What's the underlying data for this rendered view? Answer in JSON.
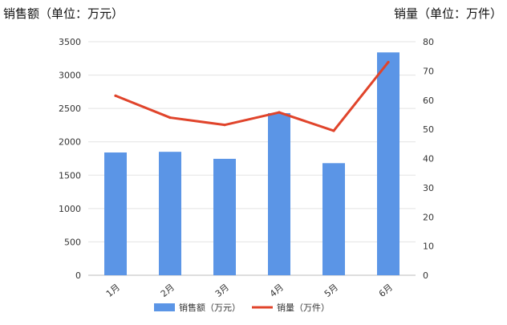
{
  "chart_data": {
    "type": "bar+line",
    "categories": [
      "1月",
      "2月",
      "3月",
      "4月",
      "5月",
      "6月"
    ],
    "left_axis": {
      "label": "销售额（单位：万元）",
      "ylim": [
        0,
        3500
      ],
      "ticks": [
        0,
        500,
        1000,
        1500,
        2000,
        2500,
        3000,
        3500
      ]
    },
    "right_axis": {
      "label": "销量（单位：万件）",
      "ylim": [
        0,
        80
      ],
      "ticks": [
        0,
        10,
        20,
        30,
        40,
        50,
        60,
        70,
        80
      ]
    },
    "series": [
      {
        "name": "销售额（万元）",
        "type": "bar",
        "axis": "left",
        "color": "#5b95e6",
        "values": [
          1840,
          1850,
          1745,
          2430,
          1680,
          3340
        ]
      },
      {
        "name": "销量（万件）",
        "type": "line",
        "axis": "right",
        "color": "#e0442b",
        "values": [
          61.5,
          54,
          51.5,
          55.8,
          49.5,
          73
        ]
      }
    ],
    "grid": true,
    "legend": "bottom"
  }
}
